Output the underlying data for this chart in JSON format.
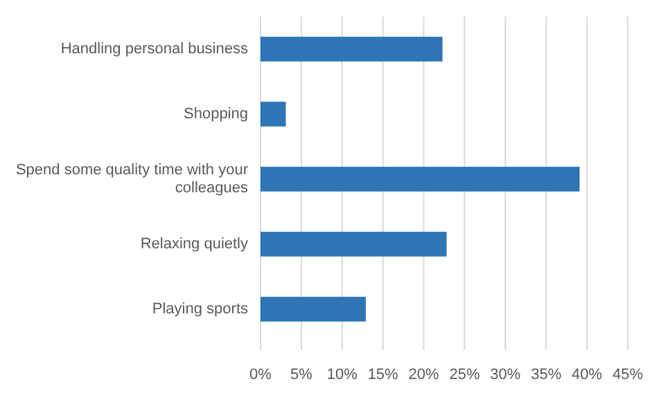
{
  "chart_data": {
    "type": "bar",
    "orientation": "horizontal",
    "categories": [
      "Handling personal business",
      "Shopping",
      "Spend some quality time with your colleagues",
      "Relaxing quietly",
      "Playing sports"
    ],
    "values": [
      22.3,
      3.1,
      39.1,
      22.8,
      12.9
    ],
    "color": "#2e75b6",
    "xlim": [
      0,
      45
    ],
    "xticks": [
      {
        "value": 0,
        "label": "0%"
      },
      {
        "value": 5,
        "label": "5%"
      },
      {
        "value": 10,
        "label": "10%"
      },
      {
        "value": 15,
        "label": "15%"
      },
      {
        "value": 20,
        "label": "20%"
      },
      {
        "value": 25,
        "label": "25%"
      },
      {
        "value": 30,
        "label": "30%"
      },
      {
        "value": 35,
        "label": "35%"
      },
      {
        "value": 40,
        "label": "40%"
      },
      {
        "value": 45,
        "label": "45%"
      }
    ],
    "grid": "x"
  }
}
